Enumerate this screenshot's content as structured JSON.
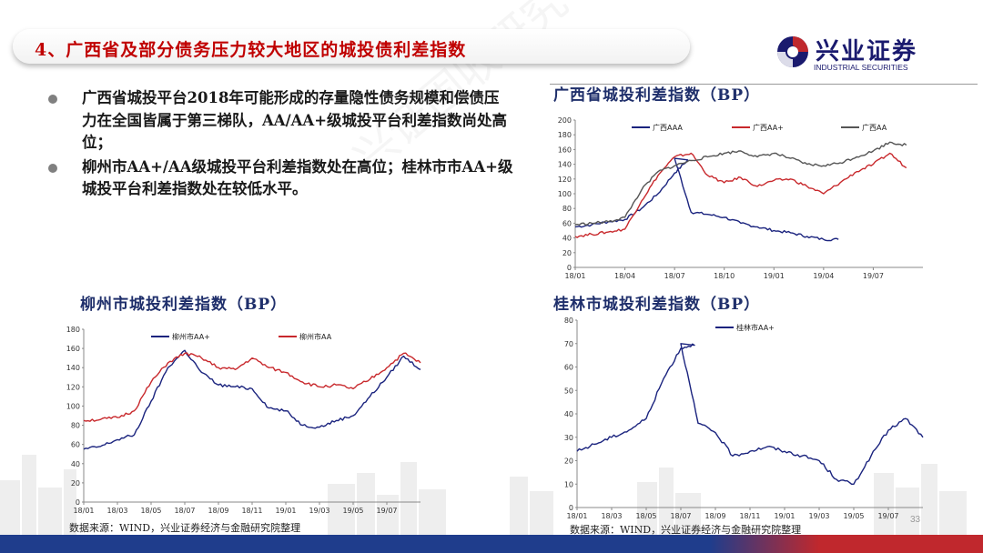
{
  "slide": {
    "title": "4、广西省及部分债务压力较大地区的城投债利差指数",
    "page_number": "33",
    "watermark": "兴证固收研究"
  },
  "logo": {
    "cn": "兴业证券",
    "en": "INDUSTRIAL SECURITIES"
  },
  "bullets": [
    "广西省城投平台2018年可能形成的存量隐性债务规模和偿债压力在全国皆属于第三梯队，AA/AA+级城投平台利差指数尚处高位；",
    "柳州市AA+/AA级城投平台利差指数处在高位；桂林市市AA+级城投平台利差指数处在较低水平。"
  ],
  "source_note": "数据来源：WIND，兴业证券经济与金融研究院整理",
  "colors": {
    "navy": "#1a237e",
    "red": "#c8282c",
    "gray": "#555555",
    "title_red": "#c00000"
  },
  "chart_data": [
    {
      "type": "line",
      "title": "广西省城投利差指数（BP）",
      "x_ticks": [
        "18/01",
        "18/04",
        "18/07",
        "18/10",
        "19/01",
        "19/04",
        "19/07"
      ],
      "ylim": [
        0,
        200
      ],
      "y_ticks": [
        0,
        20,
        40,
        60,
        80,
        100,
        120,
        140,
        160,
        180,
        200
      ],
      "legend_position": "top",
      "series": [
        {
          "name": "广西AAA",
          "color": "#1a237e",
          "x": [
            "18/01",
            "18/02",
            "18/03",
            "18/04",
            "18/05",
            "18/06",
            "18/07",
            "18/07",
            "18/08",
            "18/09",
            "18/10",
            "18/11",
            "18/12",
            "19/01",
            "19/02",
            "19/03",
            "19/04",
            "19/04"
          ],
          "y": [
            55,
            58,
            62,
            65,
            80,
            100,
            128,
            148,
            75,
            72,
            68,
            60,
            55,
            50,
            47,
            42,
            38,
            38
          ]
        },
        {
          "name": "广西AA+",
          "color": "#c8282c",
          "x": [
            "18/01",
            "18/02",
            "18/03",
            "18/04",
            "18/05",
            "18/06",
            "18/07",
            "18/08",
            "18/09",
            "18/10",
            "18/11",
            "18/12",
            "19/01",
            "19/02",
            "19/03",
            "19/04",
            "19/05",
            "19/06",
            "19/07",
            "19/08",
            "19/09"
          ],
          "y": [
            42,
            45,
            48,
            52,
            90,
            125,
            150,
            155,
            125,
            115,
            122,
            110,
            118,
            120,
            110,
            100,
            115,
            130,
            140,
            155,
            135
          ]
        },
        {
          "name": "广西AA",
          "color": "#555555",
          "x": [
            "18/01",
            "18/02",
            "18/03",
            "18/04",
            "18/05",
            "18/06",
            "18/07",
            "18/08",
            "18/09",
            "18/10",
            "18/11",
            "18/12",
            "19/01",
            "19/02",
            "19/03",
            "19/04",
            "19/05",
            "19/06",
            "19/07",
            "19/08",
            "19/09"
          ],
          "y": [
            58,
            60,
            62,
            68,
            105,
            130,
            138,
            145,
            150,
            155,
            158,
            150,
            155,
            148,
            140,
            138,
            142,
            150,
            158,
            170,
            166
          ]
        }
      ]
    },
    {
      "type": "line",
      "title": "柳州市城投利差指数（BP）",
      "x_ticks": [
        "18/01",
        "18/03",
        "18/05",
        "18/07",
        "18/09",
        "18/11",
        "19/01",
        "19/03",
        "19/05",
        "19/07"
      ],
      "ylim": [
        0,
        180
      ],
      "y_ticks": [
        0,
        20,
        40,
        60,
        80,
        100,
        120,
        140,
        160,
        180
      ],
      "legend_position": "top",
      "series": [
        {
          "name": "柳州市AA+",
          "color": "#1a237e",
          "x": [
            "18/01",
            "18/02",
            "18/03",
            "18/04",
            "18/05",
            "18/06",
            "18/07",
            "18/08",
            "18/09",
            "18/10",
            "18/11",
            "18/12",
            "19/01",
            "19/02",
            "19/03",
            "19/04",
            "19/05",
            "19/06",
            "19/07",
            "19/08",
            "19/09"
          ],
          "y": [
            55,
            58,
            65,
            70,
            105,
            140,
            158,
            135,
            122,
            120,
            118,
            98,
            95,
            80,
            78,
            85,
            90,
            110,
            130,
            152,
            138
          ]
        },
        {
          "name": "柳州市AA",
          "color": "#c8282c",
          "x": [
            "18/01",
            "18/02",
            "18/03",
            "18/04",
            "18/05",
            "18/06",
            "18/07",
            "18/08",
            "18/09",
            "18/10",
            "18/11",
            "18/12",
            "19/01",
            "19/02",
            "19/03",
            "19/04",
            "19/05",
            "19/06",
            "19/07",
            "19/08",
            "19/09"
          ],
          "y": [
            85,
            86,
            88,
            95,
            125,
            145,
            155,
            150,
            140,
            138,
            150,
            140,
            135,
            125,
            120,
            122,
            118,
            128,
            140,
            155,
            145
          ]
        }
      ]
    },
    {
      "type": "line",
      "title": "桂林市城投利差指数（BP）",
      "x_ticks": [
        "18/01",
        "18/03",
        "18/05",
        "18/07",
        "18/09",
        "18/11",
        "19/01",
        "19/03",
        "19/05",
        "19/07"
      ],
      "ylim": [
        0,
        80
      ],
      "y_ticks": [
        0,
        10,
        20,
        30,
        40,
        50,
        60,
        70,
        80
      ],
      "legend_position": "top",
      "series": [
        {
          "name": "桂林市AA+",
          "color": "#1a237e",
          "x": [
            "18/01",
            "18/02",
            "18/03",
            "18/04",
            "18/05",
            "18/06",
            "18/07",
            "18/07",
            "18/08",
            "18/09",
            "18/10",
            "18/11",
            "18/12",
            "19/01",
            "19/02",
            "19/03",
            "19/04",
            "19/05",
            "19/06",
            "19/07",
            "19/08",
            "19/09"
          ],
          "y": [
            24,
            27,
            30,
            33,
            38,
            55,
            68,
            70,
            36,
            32,
            22,
            24,
            26,
            24,
            22,
            20,
            12,
            10,
            22,
            33,
            38,
            30
          ]
        }
      ]
    }
  ]
}
